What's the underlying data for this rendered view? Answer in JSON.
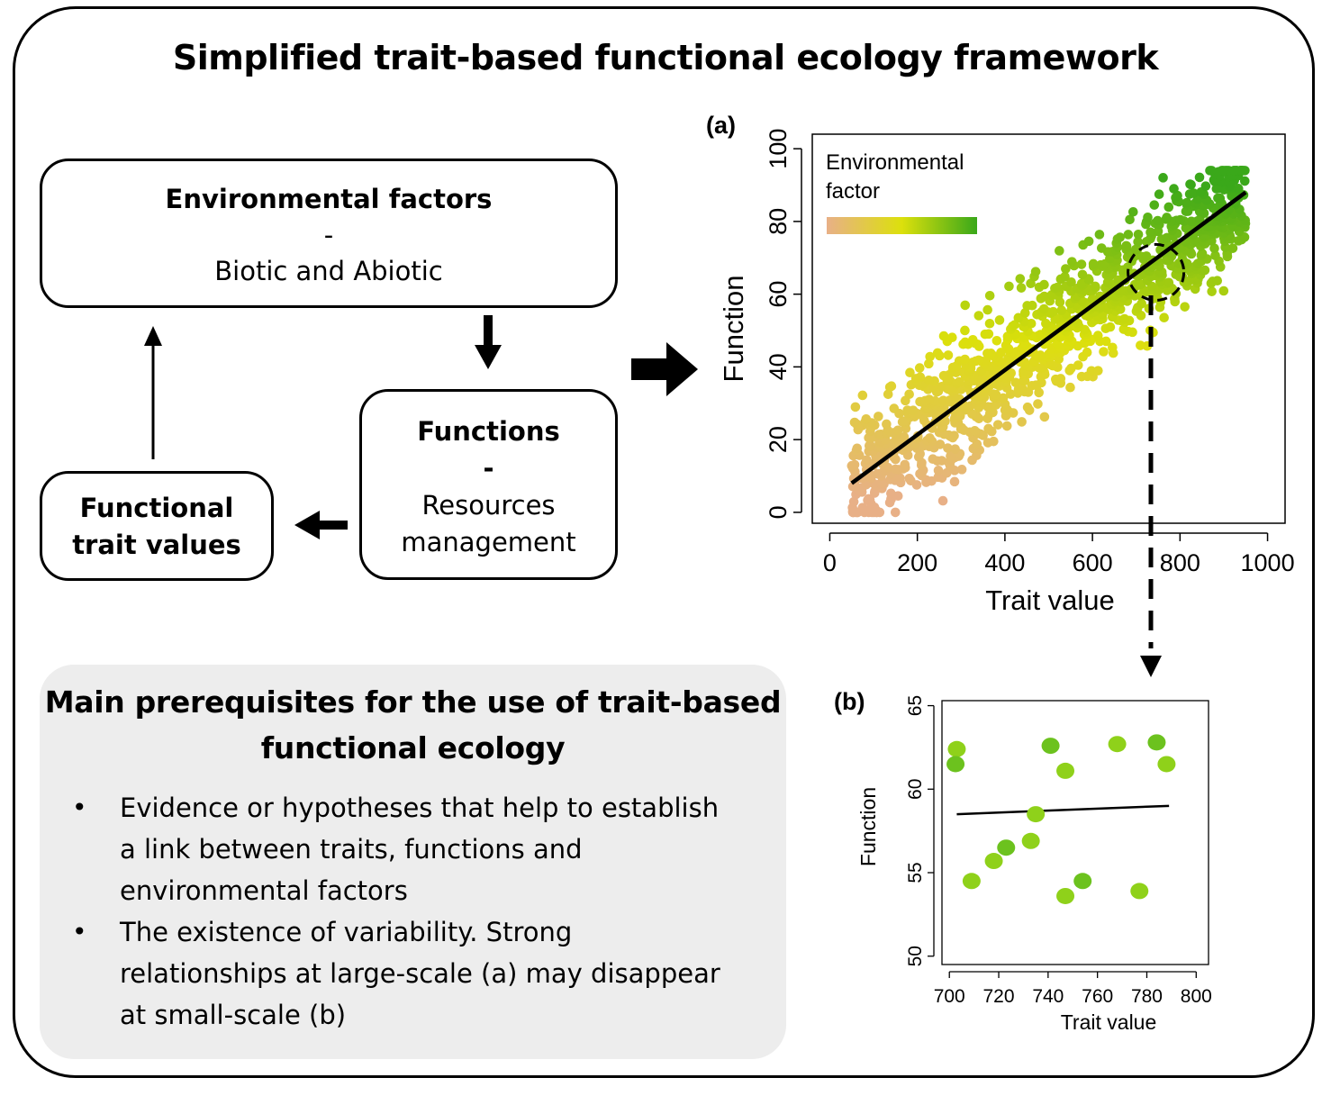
{
  "title": "Simplified trait-based functional ecology framework",
  "env_box": {
    "title": "Environmental factors",
    "dash": "-",
    "subtitle": "Biotic and Abiotic"
  },
  "functions_box": {
    "title": "Functions",
    "dash": "-",
    "line1": "Resources",
    "line2": "management"
  },
  "trait_box": {
    "line1": "Functional",
    "line2": "trait values"
  },
  "prerequisites": {
    "title_line1": "Main prerequisites for the use of trait-based",
    "title_line2": "functional ecology",
    "bullet": "•",
    "items": [
      {
        "lines": [
          "Evidence or hypotheses that help to establish",
          "a link between traits, functions and",
          "environmental factors"
        ]
      },
      {
        "lines": [
          "The existence of variability. Strong",
          "relationships at large-scale (a) may disappear",
          "at small-scale (b)"
        ]
      }
    ]
  },
  "colors": {
    "low": "#e8b087",
    "mid": "#dce00c",
    "high": "#3aa81a"
  },
  "chart_data": [
    {
      "panel_label": "(a)",
      "type": "scatter",
      "xlabel": "Trait value",
      "ylabel": "Function",
      "xlim": [
        -40,
        1040
      ],
      "ylim": [
        -3,
        104
      ],
      "xticks": [
        0,
        200,
        400,
        600,
        800,
        1000
      ],
      "yticks": [
        0,
        20,
        40,
        60,
        80,
        100
      ],
      "legend": {
        "title_line1": "Environmental",
        "title_line2": "factor",
        "placement": "top-left"
      },
      "n_points": 1200,
      "x_range": [
        50,
        950
      ],
      "trend_line": {
        "x": [
          50,
          950
        ],
        "y": [
          8,
          88
        ]
      },
      "highlight_circle": {
        "x": 745,
        "y": 66
      },
      "grid": false
    },
    {
      "panel_label": "(b)",
      "type": "scatter",
      "xlabel": "Trait value",
      "ylabel": "Function",
      "xlim": [
        697,
        805
      ],
      "ylim": [
        49.5,
        65.3
      ],
      "xticks": [
        700,
        720,
        740,
        760,
        780,
        800
      ],
      "yticks": [
        50,
        55,
        60,
        65
      ],
      "points": [
        {
          "x": 703,
          "y": 62.4
        },
        {
          "x": 702.5,
          "y": 61.5
        },
        {
          "x": 709,
          "y": 54.5
        },
        {
          "x": 718,
          "y": 55.7
        },
        {
          "x": 723,
          "y": 56.5
        },
        {
          "x": 733,
          "y": 56.9
        },
        {
          "x": 735,
          "y": 58.5
        },
        {
          "x": 741,
          "y": 62.6
        },
        {
          "x": 747,
          "y": 61.1
        },
        {
          "x": 747,
          "y": 53.6
        },
        {
          "x": 754,
          "y": 54.5
        },
        {
          "x": 768,
          "y": 62.7
        },
        {
          "x": 777,
          "y": 53.9
        },
        {
          "x": 784,
          "y": 62.8
        },
        {
          "x": 788,
          "y": 61.5
        }
      ],
      "trend_line": {
        "x": [
          703,
          789
        ],
        "y": [
          58.5,
          59.0
        ]
      },
      "grid": false
    }
  ]
}
